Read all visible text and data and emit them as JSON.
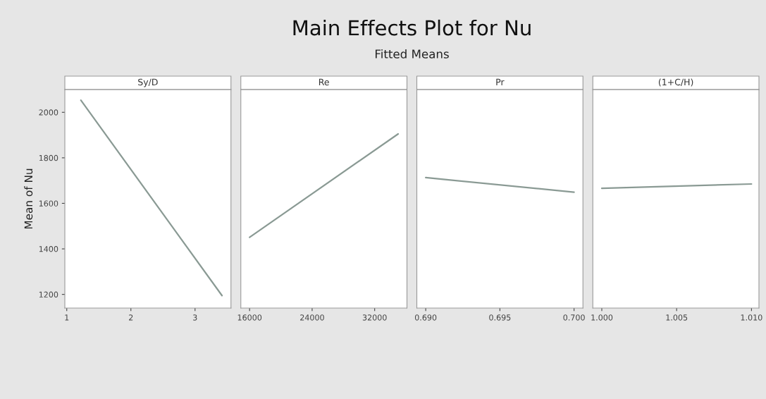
{
  "chart_data": [
    {
      "type": "other",
      "title": "Main Effects Plot for Nu",
      "subtitle": "Fitted Means"
    },
    {
      "type": "line",
      "xlabel": "Sy/D",
      "ylabel": "Mean of Nu",
      "x": [
        1.22,
        3.42
      ],
      "series": [
        {
          "color": "#8a9a94",
          "values": [
            2053,
            1195
          ]
        }
      ],
      "xlim": [
        0.97,
        3.56
      ],
      "xticks": [
        1,
        2,
        3
      ],
      "ylim": [
        1140,
        2100
      ],
      "yticks": [
        1200,
        1400,
        1600,
        1800,
        2000
      ],
      "grid": false,
      "marker": "none"
    },
    {
      "type": "line",
      "xlabel": "Re",
      "x": [
        16000,
        35000
      ],
      "series": [
        {
          "color": "#8a9a94",
          "values": [
            1451,
            1905
          ]
        }
      ],
      "xlim": [
        14880,
        36130
      ],
      "xticks": [
        16000,
        24000,
        32000
      ],
      "ylim": [
        1140,
        2100
      ],
      "tick_labels": "x",
      "grid": false,
      "marker": "none"
    },
    {
      "type": "line",
      "xlabel": "Pr",
      "x": [
        0.69,
        0.7
      ],
      "series": [
        {
          "color": "#8a9a94",
          "values": [
            1713,
            1649
          ]
        }
      ],
      "xlim": [
        0.6894,
        0.7006
      ],
      "xticks": [
        {
          "value": 0.69,
          "label": "0.690"
        },
        {
          "value": 0.695,
          "label": "0.695"
        },
        {
          "value": 0.7,
          "label": "0.700"
        }
      ],
      "ylim": [
        1140,
        2100
      ],
      "tick_labels": "x",
      "grid": false,
      "marker": "none"
    },
    {
      "type": "line",
      "xlabel": "(1+C/H)",
      "x": [
        1.0,
        1.01
      ],
      "series": [
        {
          "color": "#8a9a94",
          "values": [
            1666,
            1685
          ]
        }
      ],
      "xlim": [
        0.9994,
        1.0105
      ],
      "xticks": [
        {
          "value": 1.0,
          "label": "1.000"
        },
        {
          "value": 1.005,
          "label": "1.005"
        },
        {
          "value": 1.01,
          "label": "1.010"
        }
      ],
      "ylim": [
        1140,
        2100
      ],
      "tick_labels": "x",
      "grid": false,
      "marker": "none"
    }
  ]
}
